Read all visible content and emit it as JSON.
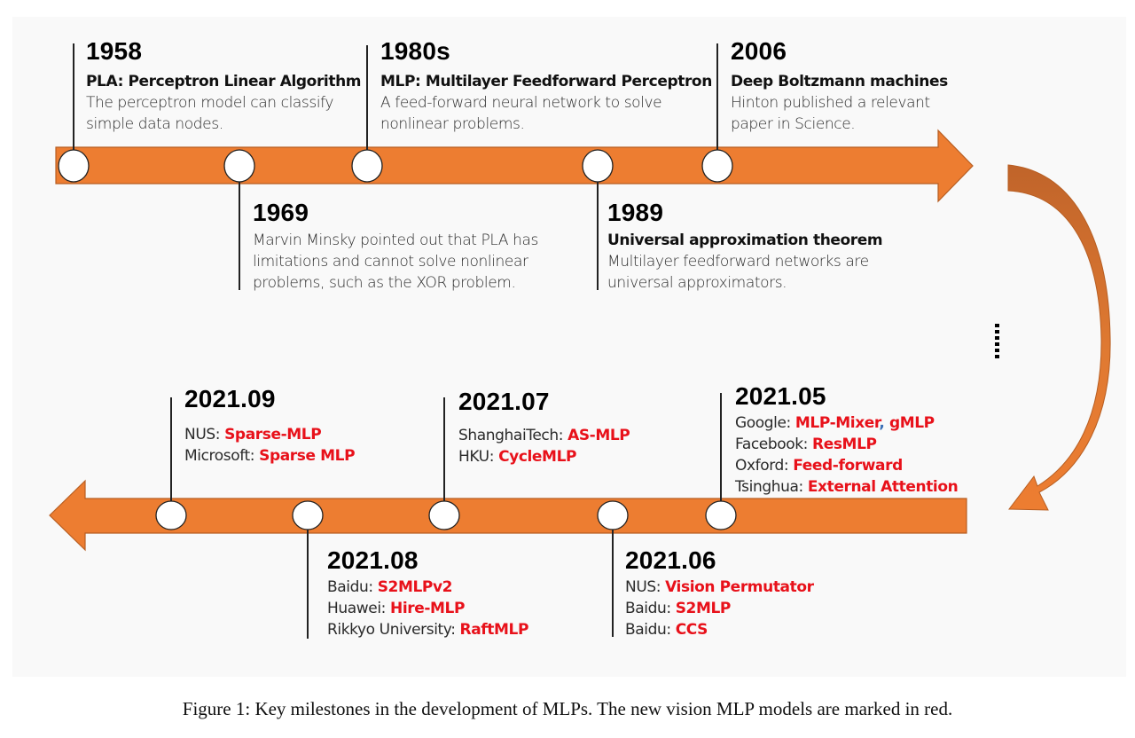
{
  "colors": {
    "arrow_fill": "#ed7d31",
    "arrow_stroke": "#b75e22",
    "curve_dark": "#c0642a",
    "node_fill": "#ffffff",
    "node_stroke": "#222222",
    "model_red": "#e8111a",
    "panel_bg": "#f9f9f9"
  },
  "top_timeline": {
    "direction": "right",
    "events": [
      {
        "year": "1958",
        "title": "PLA: Perceptron Linear Algorithm",
        "desc": [
          "The perceptron model can classify",
          "simple data nodes."
        ],
        "side": "above"
      },
      {
        "year": "1969",
        "title": "",
        "desc": [
          "Marvin Minsky pointed out that PLA has",
          "limitations and cannot solve nonlinear",
          "problems, such as the XOR problem."
        ],
        "side": "below"
      },
      {
        "year": "1980s",
        "title": "MLP: Multilayer Feedforward Perceptron",
        "desc": [
          "A feed-forward neural network to solve",
          "nonlinear problems."
        ],
        "side": "above"
      },
      {
        "year": "1989",
        "title": "Universal approximation theorem",
        "desc": [
          "Multilayer feedforward networks are",
          "universal approximators."
        ],
        "side": "below"
      },
      {
        "year": "2006",
        "title": "Deep Boltzmann machines",
        "desc": [
          "Hinton published a relevant",
          "paper in Science."
        ],
        "side": "above"
      }
    ]
  },
  "continuation_marker": "......",
  "bottom_timeline": {
    "direction": "left",
    "events": [
      {
        "year": "2021.09",
        "side": "above",
        "entries": [
          {
            "org": "NUS: ",
            "models": [
              "Sparse-MLP"
            ]
          },
          {
            "org": "Microsoft: ",
            "models": [
              "Sparse MLP"
            ]
          }
        ]
      },
      {
        "year": "2021.08",
        "side": "below",
        "entries": [
          {
            "org": "Baidu: ",
            "models": [
              "S2MLPv2"
            ]
          },
          {
            "org": "Huawei: ",
            "models": [
              "Hire-MLP"
            ]
          },
          {
            "org": "Rikkyo University: ",
            "models": [
              "RaftMLP"
            ]
          }
        ]
      },
      {
        "year": "2021.07",
        "side": "above",
        "entries": [
          {
            "org": "ShanghaiTech: ",
            "models": [
              "AS-MLP"
            ]
          },
          {
            "org": "HKU: ",
            "models": [
              "CycleMLP"
            ]
          }
        ]
      },
      {
        "year": "2021.06",
        "side": "below",
        "entries": [
          {
            "org": "NUS: ",
            "models": [
              "Vision Permutator"
            ]
          },
          {
            "org": "Baidu: ",
            "models": [
              "S2MLP"
            ]
          },
          {
            "org": "Baidu: ",
            "models": [
              "CCS"
            ]
          }
        ]
      },
      {
        "year": "2021.05",
        "side": "above",
        "entries": [
          {
            "org": "Google: ",
            "models": [
              "MLP-Mixer",
              "gMLP"
            ]
          },
          {
            "org": "Facebook: ",
            "models": [
              "ResMLP"
            ]
          },
          {
            "org": "Oxford: ",
            "models": [
              "Feed-forward"
            ]
          },
          {
            "org": "Tsinghua: ",
            "models": [
              "External Attention"
            ]
          }
        ]
      }
    ]
  },
  "caption": "Figure 1:  Key milestones in the development of MLPs. The new vision MLP models are marked in red."
}
